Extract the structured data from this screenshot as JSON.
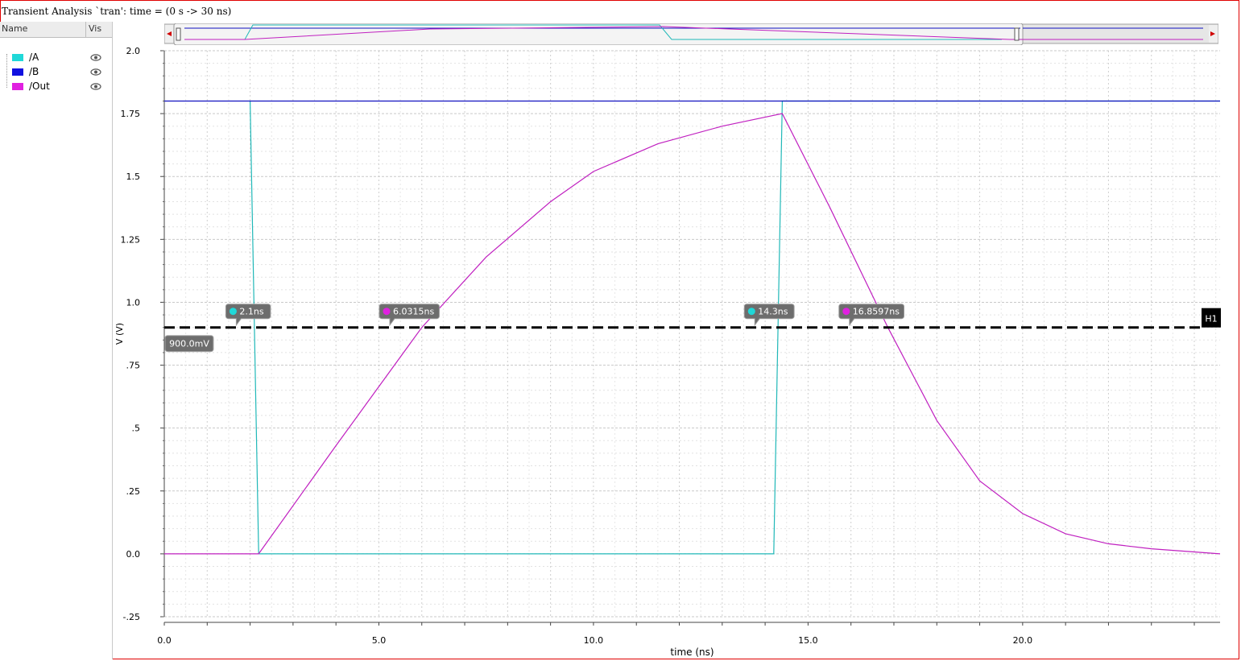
{
  "window": {
    "title": "Transient Analysis `tran': time = (0 s -> 30 ns)"
  },
  "legend": {
    "col_name": "Name",
    "col_vis": "Vis",
    "signals": [
      {
        "label": "/A",
        "color": "#20d8d8",
        "icon": "eye-icon"
      },
      {
        "label": "/B",
        "color": "#1010e0",
        "icon": "eye-icon"
      },
      {
        "label": "/Out",
        "color": "#e020e0",
        "icon": "eye-icon"
      }
    ]
  },
  "chart_data": {
    "type": "line",
    "title": "",
    "xlabel": "time (ns)",
    "ylabel": "V (V)",
    "xlim": [
      0,
      24.6
    ],
    "ylim": [
      -0.25,
      2.0
    ],
    "grid": true,
    "x_ticks": [
      0,
      5,
      10,
      15,
      20
    ],
    "x_tick_labels": [
      "0.0",
      "5.0",
      "10.0",
      "15.0",
      "20.0"
    ],
    "y_ticks": [
      2.0,
      1.75,
      1.5,
      1.25,
      1.0,
      0.75,
      0.5,
      0.25,
      0.0,
      -0.25
    ],
    "y_tick_labels": [
      "2.0",
      "1.75",
      "1.5",
      "1.25",
      "1.0",
      ".75",
      ".5",
      ".25",
      "0.0",
      "-.25"
    ],
    "series": [
      {
        "name": "/A",
        "color": "#20b8b8",
        "x": [
          2.0,
          2.2,
          14.2,
          14.4,
          24.6
        ],
        "y": [
          1.8,
          0.0,
          0.0,
          1.8,
          1.8
        ]
      },
      {
        "name": "/B",
        "color": "#1010c0",
        "x": [
          0,
          24.6
        ],
        "y": [
          1.8,
          1.8
        ]
      },
      {
        "name": "/Out",
        "color": "#c020c0",
        "x": [
          0,
          2.2,
          4.0,
          6.0,
          7.5,
          9.0,
          10.0,
          11.5,
          13.0,
          14.4,
          15.5,
          16.86,
          18.0,
          19.0,
          20.0,
          21.0,
          22.0,
          23.0,
          24.6
        ],
        "y": [
          0.0,
          0.0,
          0.43,
          0.9,
          1.18,
          1.4,
          1.52,
          1.63,
          1.7,
          1.75,
          1.38,
          0.9,
          0.53,
          0.29,
          0.16,
          0.08,
          0.04,
          0.02,
          0.0
        ]
      }
    ],
    "hline": {
      "label": "H1",
      "y": 0.9,
      "value_label": "900.0mV"
    },
    "markers": [
      {
        "label": "2.1ns",
        "x": 2.1,
        "color": "#20d8d8"
      },
      {
        "label": "6.0315ns",
        "x": 6.0315,
        "color": "#e020e0"
      },
      {
        "label": "14.3ns",
        "x": 14.3,
        "color": "#20d8d8"
      },
      {
        "label": "16.8597ns",
        "x": 16.8597,
        "color": "#e020e0"
      }
    ]
  }
}
